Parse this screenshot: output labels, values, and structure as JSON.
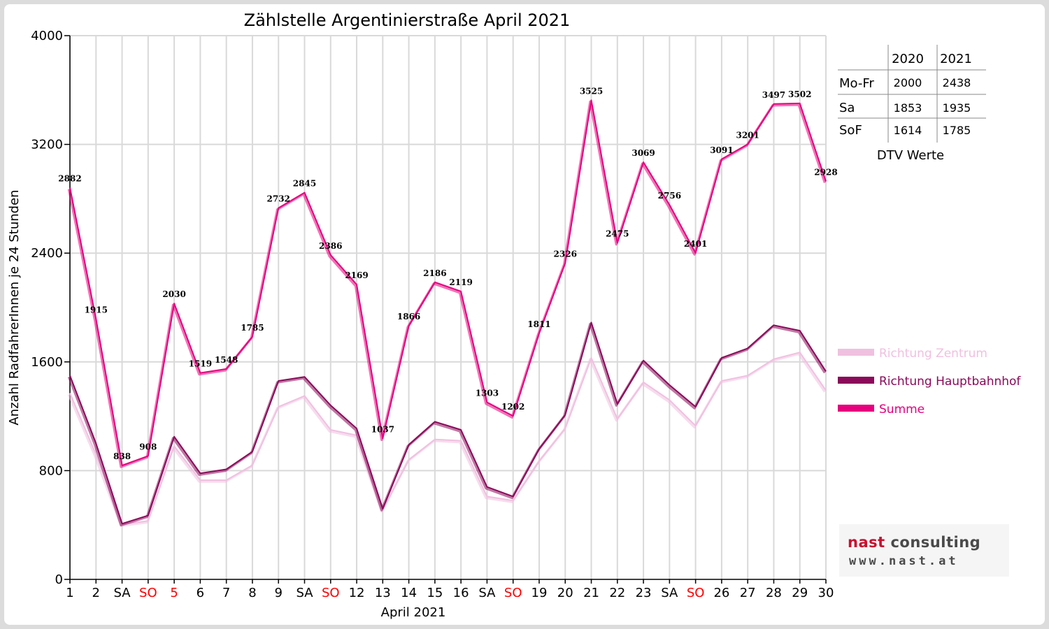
{
  "chart_data": {
    "type": "line",
    "title": "Zählstelle Argentinierstraße April 2021",
    "xlabel": "April 2021",
    "ylabel": "Anzahl RadfahrerInnen je 24 Stunden",
    "ylim": [
      0,
      4000
    ],
    "yticks": [
      0,
      800,
      1600,
      2400,
      3200,
      4000
    ],
    "grid": true,
    "legend_position": "right",
    "categories": [
      "1",
      "2",
      "SA",
      "SO",
      "5",
      "6",
      "7",
      "8",
      "9",
      "SA",
      "SO",
      "12",
      "13",
      "14",
      "15",
      "16",
      "SA",
      "SO",
      "19",
      "20",
      "21",
      "22",
      "23",
      "SA",
      "SO",
      "26",
      "27",
      "28",
      "29",
      "30"
    ],
    "red_categories": [
      3,
      4,
      10,
      17,
      24
    ],
    "series": [
      {
        "name": "Richtung Zentrum",
        "color": "#f0c0e0",
        "values": [
          1370,
          920,
          405,
          430,
          980,
          730,
          730,
          840,
          1270,
          1350,
          1100,
          1060,
          510,
          880,
          1030,
          1020,
          610,
          580,
          870,
          1110,
          1630,
          1180,
          1450,
          1320,
          1130,
          1460,
          1500,
          1620,
          1670,
          1390
        ]
      },
      {
        "name": "Richtung Hauptbahnhof",
        "color": "#8b0a5a",
        "values": [
          1500,
          1000,
          410,
          470,
          1050,
          780,
          810,
          940,
          1460,
          1490,
          1280,
          1110,
          520,
          990,
          1160,
          1100,
          680,
          610,
          960,
          1210,
          1890,
          1290,
          1610,
          1430,
          1270,
          1630,
          1700,
          1870,
          1830,
          1530
        ]
      },
      {
        "name": "Summe",
        "color": "#e6007e",
        "values": [
          2882,
          1915,
          838,
          908,
          2030,
          1519,
          1548,
          1785,
          2732,
          2845,
          2386,
          2169,
          1037,
          1866,
          2186,
          2119,
          1303,
          1202,
          1811,
          2326,
          3525,
          2475,
          3069,
          2756,
          2401,
          3091,
          3201,
          3497,
          3502,
          2928
        ]
      }
    ],
    "data_labels": [
      "2882",
      "1915",
      "838",
      "908",
      "2030",
      "1519",
      "1548",
      "1785",
      "2732",
      "2845",
      "2386",
      "2169",
      "1037",
      "1866",
      "2186",
      "2119",
      "1303",
      "1202",
      "1811",
      "2326",
      "3525",
      "2475",
      "3069",
      "2756",
      "2401",
      "3091",
      "3201",
      "3497",
      "3502",
      "2928"
    ]
  },
  "dtv_table": {
    "headers": [
      "",
      "2020",
      "2021"
    ],
    "rows": [
      {
        "label": "Mo-Fr",
        "v2020": "2000",
        "v2021": "2438"
      },
      {
        "label": "Sa",
        "v2020": "1853",
        "v2021": "1935"
      },
      {
        "label": "SoF",
        "v2020": "1614",
        "v2021": "1785"
      }
    ],
    "caption": "DTV Werte"
  },
  "logo": {
    "brand_a": "nast",
    "brand_b": "consulting",
    "web": "www.nast.at"
  }
}
